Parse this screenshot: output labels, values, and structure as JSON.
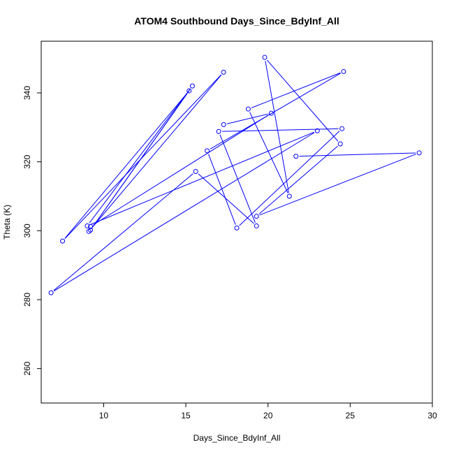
{
  "chart_data": {
    "type": "line",
    "title": "ATOM4 Southbound Days_Since_BdyInf_All",
    "xlabel": "Days_Since_BdyInf_All",
    "ylabel": "Theta (K)",
    "xlim": [
      6.2,
      30.0
    ],
    "ylim": [
      250,
      355
    ],
    "x_ticks": [
      10,
      15,
      20,
      25,
      30
    ],
    "y_ticks": [
      260,
      280,
      300,
      320,
      340
    ],
    "grid": false,
    "legend": "none",
    "series_color": "#0000ff",
    "series": [
      {
        "x": [
          9.1,
          17.3,
          7.5,
          15.2,
          9.2,
          15.4,
          9.0,
          23.0,
          6.8,
          15.6,
          19.3,
          17.0,
          24.5,
          18.1,
          16.3,
          24.6,
          18.8,
          21.3,
          19.8,
          24.4,
          19.3,
          29.2,
          21.7
        ],
        "y": [
          299.8,
          346.0,
          297.0,
          340.6,
          300.2,
          342.0,
          301.4,
          329.0,
          282.0,
          317.2,
          301.4,
          328.8,
          329.6,
          300.8,
          323.2,
          346.2,
          335.3,
          310.0,
          350.3,
          325.2,
          304.2,
          322.6,
          321.6
        ]
      },
      {
        "x": [
          17.3,
          20.2,
          9.2
        ],
        "y": [
          330.8,
          334.1,
          301.2
        ]
      }
    ]
  }
}
